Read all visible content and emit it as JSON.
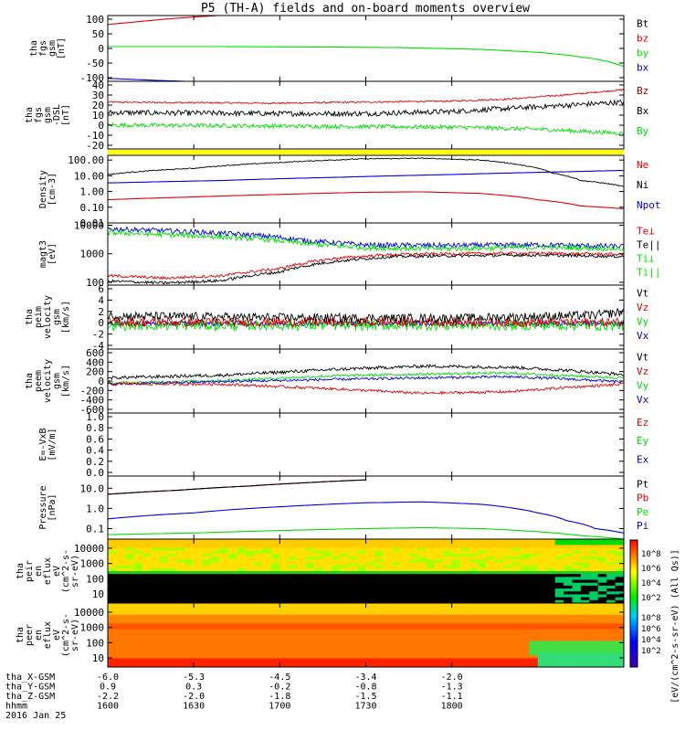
{
  "title": "P5 (TH-A) fields and on-board moments overview",
  "colors": {
    "black": "#000000",
    "red": "#e00000",
    "green": "#00dd00",
    "blue": "#0000dd",
    "yellow": "#ffff00",
    "dkred": "#a00000"
  },
  "chart_data": [
    {
      "id": "p0",
      "type": "line",
      "ylabel": [
        "tha",
        "fgs",
        "gsm",
        "[nT]"
      ],
      "yticks": [
        "100",
        "50",
        "0",
        "-50",
        "-100"
      ],
      "ylim": [
        -110,
        110
      ],
      "legend": [
        {
          "name": "Bt",
          "color": "#000000"
        },
        {
          "name": "bz",
          "color": "#e00000"
        },
        {
          "name": "by",
          "color": "#00dd00"
        },
        {
          "name": "bx",
          "color": "#0000dd"
        }
      ],
      "series": [
        {
          "name": "bz",
          "color": "#e00000",
          "x": [
            0,
            10,
            20,
            30,
            40
          ],
          "y": [
            80,
            89,
            98,
            105,
            111
          ]
        },
        {
          "name": "by",
          "color": "#00dd00",
          "x": [
            0,
            40,
            70,
            100,
            130,
            150,
            160,
            170,
            175,
            180,
            185
          ],
          "y": [
            6,
            6,
            5,
            3,
            -3,
            -13,
            -22,
            -35,
            -45,
            -60,
            -75
          ]
        },
        {
          "name": "bx",
          "color": "#0000dd",
          "x": [
            0,
            10,
            20,
            30
          ],
          "y": [
            -100,
            -104,
            -108,
            -111
          ]
        }
      ]
    },
    {
      "id": "p1",
      "type": "line",
      "ylabel": [
        "tha",
        "fgs",
        "gsm",
        "-DSL",
        "[nT]"
      ],
      "yticks": [
        "40",
        "30",
        "20",
        "10",
        "0",
        "-10",
        "-20"
      ],
      "ylim": [
        -25,
        40
      ],
      "legend": [
        {
          "name": "Bz",
          "color": "#a00000"
        },
        {
          "name": "Bx",
          "color": "#000000"
        },
        {
          "name": "By",
          "color": "#00dd00"
        }
      ],
      "series": [
        {
          "name": "Bz",
          "color": "#e00000",
          "x": [
            0,
            60,
            90,
            120,
            140,
            160,
            180
          ],
          "y": [
            20,
            19,
            20,
            21,
            23,
            27,
            32
          ],
          "noise": 0.8
        },
        {
          "name": "Bx",
          "color": "#000000",
          "x": [
            0,
            60,
            90,
            120,
            140,
            160,
            180
          ],
          "y": [
            10,
            9,
            9,
            11,
            14,
            17,
            20
          ],
          "noise": 2.5
        },
        {
          "name": "By",
          "color": "#00dd00",
          "x": [
            0,
            60,
            120,
            150,
            180
          ],
          "y": [
            -2,
            -3,
            -4,
            -6,
            -10
          ],
          "noise": 2
        }
      ]
    },
    {
      "id": "p2",
      "type": "line",
      "ylabel": [
        "Density",
        "[cm-3]"
      ],
      "log": true,
      "yticks": [
        "100.00",
        "10.00",
        "1.00",
        "0.10",
        "0.01"
      ],
      "ylim": [
        0.01,
        200
      ],
      "legend": [
        {
          "name": "Ne",
          "color": "#e00000"
        },
        {
          "name": "Ni",
          "color": "#000000"
        },
        {
          "name": "Npot",
          "color": "#0000dd"
        }
      ],
      "series": [
        {
          "name": "Ni",
          "color": "#000000",
          "x": [
            0,
            30,
            60,
            90,
            110,
            130,
            145,
            155,
            165,
            175,
            180
          ],
          "y": [
            12,
            30,
            70,
            120,
            130,
            100,
            45,
            15,
            5,
            3,
            2
          ],
          "noise": 0.03
        },
        {
          "name": "Npot",
          "color": "#0000dd",
          "x": [
            0,
            40,
            80,
            120,
            160,
            180
          ],
          "y": [
            3.5,
            5,
            8,
            12,
            18,
            22
          ]
        },
        {
          "name": "Ne",
          "color": "#e00000",
          "x": [
            0,
            30,
            60,
            90,
            110,
            130,
            150,
            165,
            180
          ],
          "y": [
            0.3,
            0.45,
            0.65,
            0.9,
            0.95,
            0.75,
            0.3,
            0.12,
            0.08
          ]
        }
      ]
    },
    {
      "id": "p3",
      "type": "line",
      "ylabel": [
        "magt3",
        "[eV]"
      ],
      "log": true,
      "yticks": [
        "10000",
        "1000",
        "100"
      ],
      "ylim": [
        80,
        12000
      ],
      "legend": [
        {
          "name": "Te⊥",
          "color": "#e00000"
        },
        {
          "name": "Te||",
          "color": "#000000"
        },
        {
          "name": "Ti⊥",
          "color": "#00dd00"
        },
        {
          "name": "Ti||",
          "color": "#00dd00"
        }
      ],
      "series": [
        {
          "name": "Ti⊥",
          "color": "#0000dd",
          "x": [
            0,
            30,
            55,
            70,
            90,
            120,
            150,
            180
          ],
          "y": [
            7500,
            5800,
            4200,
            2800,
            2000,
            1950,
            2050,
            1800
          ],
          "noise": 0.09
        },
        {
          "name": "Ti||",
          "color": "#00dd00",
          "x": [
            0,
            30,
            55,
            70,
            90,
            120,
            150,
            180
          ],
          "y": [
            5500,
            4300,
            3200,
            2200,
            1600,
            1500,
            1700,
            1500
          ],
          "noise": 0.09
        },
        {
          "name": "Te⊥",
          "color": "#e00000",
          "x": [
            0,
            20,
            40,
            60,
            80,
            100,
            120,
            150,
            180
          ],
          "y": [
            170,
            140,
            170,
            300,
            700,
            950,
            1000,
            1050,
            950
          ],
          "noise": 0.05
        },
        {
          "name": "Te||",
          "color": "#000000",
          "x": [
            0,
            20,
            40,
            60,
            80,
            100,
            120,
            150,
            180
          ],
          "y": [
            110,
            95,
            115,
            230,
            550,
            800,
            850,
            900,
            800
          ],
          "noise": 0.05
        }
      ]
    },
    {
      "id": "p4",
      "type": "line",
      "ylabel": [
        "tha",
        "peim",
        "velocity",
        "gsm",
        "[km/s]"
      ],
      "yticks": [
        "6",
        "4",
        "2",
        "0",
        "-2",
        "-4"
      ],
      "ylim": [
        -4,
        6
      ],
      "legend": [
        {
          "name": "Vt",
          "color": "#000000"
        },
        {
          "name": "Vz",
          "color": "#e00000"
        },
        {
          "name": "Vy",
          "color": "#00dd00"
        },
        {
          "name": "Vx",
          "color": "#0000dd"
        }
      ],
      "series": [
        {
          "name": "Vx",
          "color": "#0000dd",
          "x": [
            0,
            180
          ],
          "y": [
            0,
            0
          ],
          "noise": 0.4
        },
        {
          "name": "Vy",
          "color": "#00dd00",
          "x": [
            0,
            180
          ],
          "y": [
            -0.3,
            -0.3
          ],
          "noise": 0.8
        },
        {
          "name": "Vz",
          "color": "#e00000",
          "x": [
            0,
            180
          ],
          "y": [
            0.2,
            0.2
          ],
          "noise": 0.7
        },
        {
          "name": "Vt",
          "color": "#000000",
          "x": [
            0,
            60,
            120,
            170,
            180
          ],
          "y": [
            1.2,
            0.9,
            0.8,
            1.3,
            1.8
          ],
          "noise": 0.7
        }
      ]
    },
    {
      "id": "p5",
      "type": "line",
      "ylabel": [
        "tha",
        "peem",
        "velocity",
        "gsm",
        "[km/s]"
      ],
      "yticks": [
        "600",
        "400",
        "200",
        "0",
        "-200",
        "-400",
        "-600"
      ],
      "ylim": [
        -600,
        600
      ],
      "legend": [
        {
          "name": "Vt",
          "color": "#000000"
        },
        {
          "name": "Vz",
          "color": "#e00000"
        },
        {
          "name": "Vy",
          "color": "#00dd00"
        },
        {
          "name": "Vx",
          "color": "#0000dd"
        }
      ],
      "series": [
        {
          "name": "Vt",
          "color": "#000000",
          "x": [
            0,
            40,
            80,
            110,
            140,
            160,
            180
          ],
          "y": [
            60,
            110,
            220,
            280,
            260,
            200,
            120
          ],
          "noise": 30
        },
        {
          "name": "Vy",
          "color": "#00dd00",
          "x": [
            0,
            40,
            80,
            110,
            140,
            160,
            180
          ],
          "y": [
            -40,
            10,
            100,
            130,
            150,
            100,
            60
          ],
          "noise": 25
        },
        {
          "name": "Vx",
          "color": "#0000dd",
          "x": [
            0,
            40,
            80,
            110,
            140,
            160,
            180
          ],
          "y": [
            -60,
            -10,
            30,
            60,
            80,
            40,
            -20
          ],
          "noise": 25
        },
        {
          "name": "Vz",
          "color": "#e00000",
          "x": [
            0,
            40,
            80,
            110,
            140,
            160,
            180
          ],
          "y": [
            -50,
            -60,
            -150,
            -230,
            -200,
            -120,
            -60
          ],
          "noise": 25
        }
      ]
    },
    {
      "id": "p6",
      "type": "line",
      "ylabel": [
        "E=-VxB",
        "[mV/m]"
      ],
      "yticks": [
        "1.0",
        "0.8",
        "0.6",
        "0.4",
        "0.2",
        "0.0"
      ],
      "ylim": [
        0,
        1
      ],
      "legend": [
        {
          "name": "Ez",
          "color": "#e00000"
        },
        {
          "name": "Ey",
          "color": "#00dd00"
        },
        {
          "name": "Ex",
          "color": "#0000dd"
        }
      ],
      "series": []
    },
    {
      "id": "p7",
      "type": "line",
      "ylabel": [
        "Pressure",
        "[nPa]"
      ],
      "log": true,
      "yticks": [
        "10.0",
        "1.0",
        "0.1"
      ],
      "ylim": [
        0.03,
        40
      ],
      "legend": [
        {
          "name": "Pt",
          "color": "#000000"
        },
        {
          "name": "Pb",
          "color": "#e00000"
        },
        {
          "name": "Pe",
          "color": "#00dd00"
        },
        {
          "name": "Pi",
          "color": "#0000dd"
        }
      ],
      "series": [
        {
          "name": "Pb",
          "color": "#e00000",
          "x": [
            0,
            25,
            50,
            70,
            90
          ],
          "y": [
            5,
            8,
            13,
            19,
            26
          ]
        },
        {
          "name": "Pt",
          "color": "#000000",
          "x": [
            0,
            25,
            50,
            70,
            90
          ],
          "y": [
            5,
            8,
            13,
            19,
            26
          ]
        },
        {
          "name": "Pi",
          "color": "#0000dd",
          "x": [
            0,
            30,
            60,
            90,
            110,
            130,
            150,
            160,
            170,
            180
          ],
          "y": [
            0.3,
            0.6,
            1.2,
            1.9,
            2.1,
            1.6,
            0.6,
            0.25,
            0.1,
            0.06
          ]
        },
        {
          "name": "Pe",
          "color": "#00dd00",
          "x": [
            0,
            30,
            60,
            90,
            110,
            130,
            150,
            165,
            175,
            180
          ],
          "y": [
            0.05,
            0.06,
            0.08,
            0.1,
            0.11,
            0.1,
            0.07,
            0.045,
            0.035,
            0.03
          ]
        }
      ]
    },
    {
      "id": "p8",
      "type": "heatmap",
      "ylabel": [
        "tha",
        "peir",
        "en",
        "eflux",
        "eV",
        "(cm^2-s-",
        "sr-eV)"
      ],
      "yticks": [
        "10000",
        "1000",
        "100",
        "10"
      ],
      "ylim": [
        5,
        20000
      ]
    },
    {
      "id": "p9",
      "type": "heatmap",
      "ylabel": [
        "tha",
        "peer",
        "en",
        "eflux",
        "eV",
        "(cm^2-s-",
        "sr-eV)"
      ],
      "yticks": [
        "10000",
        "1000",
        "100",
        "10"
      ],
      "ylim": [
        5,
        20000
      ]
    }
  ],
  "colorbar": {
    "ticks": [
      "10^8",
      "10^6",
      "10^4",
      "10^2"
    ],
    "label": "[eV/(cm^2-s-sr-eV) (All Qs)]"
  },
  "xaxis": {
    "labels": [
      "tha_X-GSM",
      "tha_Y-GSM",
      "tha_Z-GSM",
      "hhmm",
      "2016 Jan 25"
    ],
    "ticks": [
      {
        "x": 0,
        "v": [
          "-6.0",
          "0.9",
          "-2.2",
          "1600"
        ]
      },
      {
        "x": 30,
        "v": [
          "-5.3",
          "0.3",
          "-2.0",
          "1630"
        ]
      },
      {
        "x": 60,
        "v": [
          "-4.5",
          "-0.2",
          "-1.8",
          "1700"
        ]
      },
      {
        "x": 90,
        "v": [
          "-3.4",
          "-0.8",
          "-1.5",
          "1730"
        ]
      },
      {
        "x": 120,
        "v": [
          "-2.0",
          "-1.3",
          "-1.1",
          "1800"
        ]
      }
    ],
    "xlim": [
      0,
      180
    ]
  }
}
